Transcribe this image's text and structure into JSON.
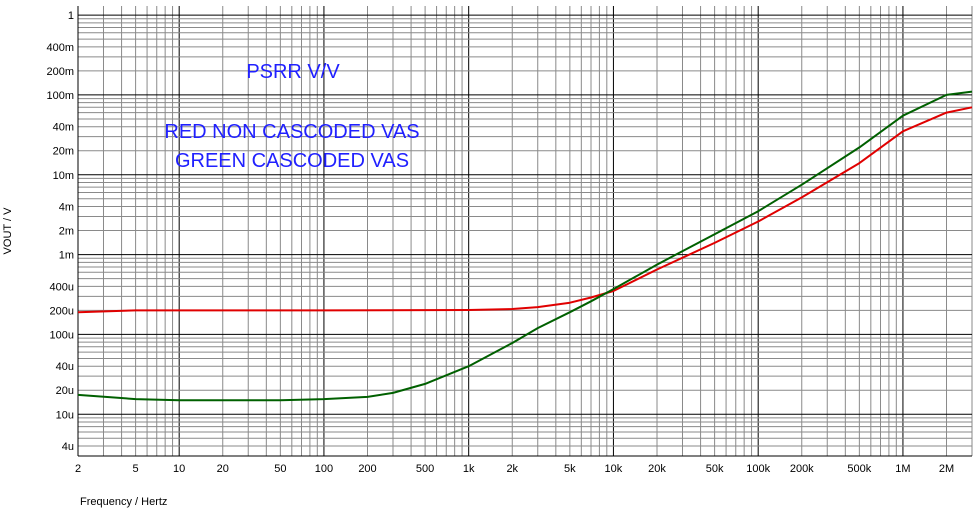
{
  "chart_data": {
    "type": "line",
    "xscale": "log",
    "yscale": "log",
    "xlim": [
      2,
      3000000
    ],
    "ylim": [
      3e-06,
      1.3
    ],
    "xlabel": "Frequency / Hertz",
    "ylabel": "VOUT / V",
    "grid": true,
    "x_tick_labels": [
      "2",
      "5",
      "10",
      "20",
      "50",
      "100",
      "200",
      "500",
      "1k",
      "2k",
      "5k",
      "10k",
      "20k",
      "50k",
      "100k",
      "200k",
      "500k",
      "1M",
      "2M"
    ],
    "x_tick_values": [
      2,
      5,
      10,
      20,
      50,
      100,
      200,
      500,
      1000,
      2000,
      5000,
      10000,
      20000,
      50000,
      100000,
      200000,
      500000,
      1000000,
      2000000
    ],
    "y_tick_labels": [
      "1",
      "400m",
      "200m",
      "100m",
      "40m",
      "20m",
      "10m",
      "4m",
      "2m",
      "1m",
      "400u",
      "200u",
      "100u",
      "40u",
      "20u",
      "10u",
      "4u"
    ],
    "y_tick_values": [
      1,
      0.4,
      0.2,
      0.1,
      0.04,
      0.02,
      0.01,
      0.004,
      0.002,
      0.001,
      0.0004,
      0.0002,
      0.0001,
      4e-05,
      2e-05,
      1e-05,
      4e-06
    ],
    "annotations": [
      "PSRR V/V",
      "RED NON CASCODED VAS",
      "GREEN CASCODED VAS"
    ],
    "series": [
      {
        "color": "#e00000",
        "x": [
          2,
          5,
          10,
          100,
          1000,
          2000,
          3000,
          5000,
          7000,
          10000,
          20000,
          50000,
          100000,
          200000,
          500000,
          1000000,
          2000000,
          3000000
        ],
        "y": [
          0.00019,
          0.0002,
          0.0002,
          0.0002,
          0.000202,
          0.000208,
          0.00022,
          0.00025,
          0.00029,
          0.00035,
          0.00065,
          0.0014,
          0.0026,
          0.0052,
          0.014,
          0.035,
          0.06,
          0.07
        ]
      },
      {
        "color": "#006000",
        "x": [
          2,
          5,
          10,
          20,
          50,
          100,
          200,
          300,
          500,
          1000,
          2000,
          3000,
          5000,
          7000,
          10000,
          20000,
          50000,
          100000,
          200000,
          500000,
          1000000,
          2000000,
          3000000
        ],
        "y": [
          1.75e-05,
          1.55e-05,
          1.5e-05,
          1.5e-05,
          1.5e-05,
          1.55e-05,
          1.65e-05,
          1.85e-05,
          2.4e-05,
          4e-05,
          7.8e-05,
          0.00012,
          0.00019,
          0.00026,
          0.00037,
          0.00075,
          0.0018,
          0.0035,
          0.0075,
          0.022,
          0.055,
          0.1,
          0.11
        ]
      }
    ]
  }
}
